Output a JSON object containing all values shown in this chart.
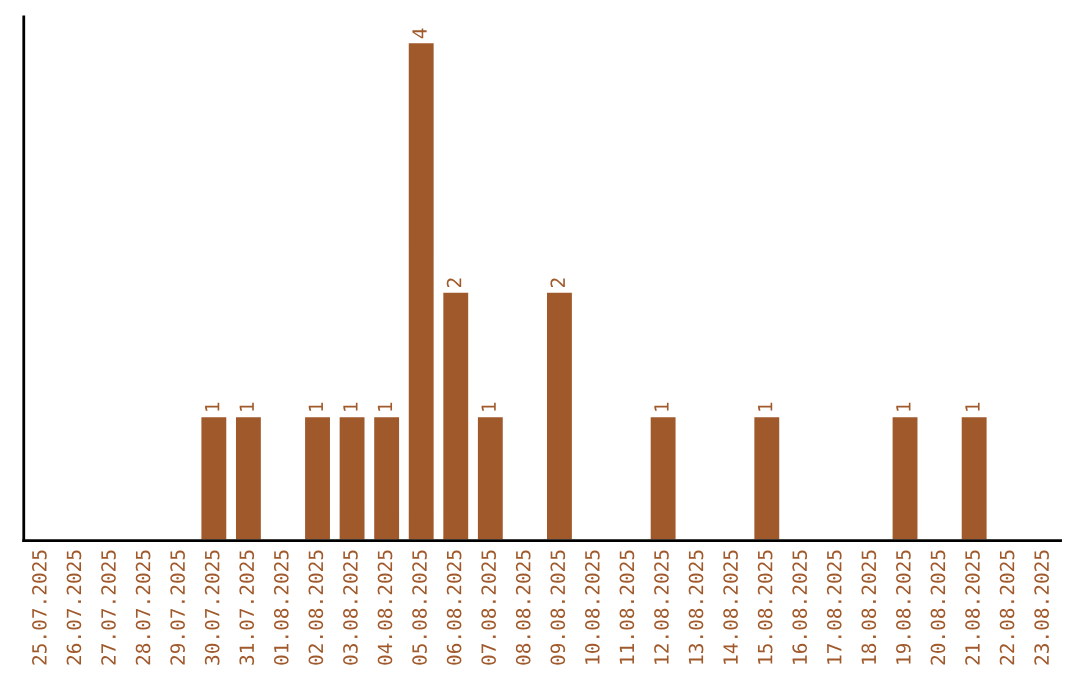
{
  "chart_data": {
    "type": "bar",
    "categories": [
      "25.07.2025",
      "26.07.2025",
      "27.07.2025",
      "28.07.2025",
      "29.07.2025",
      "30.07.2025",
      "31.07.2025",
      "01.08.2025",
      "02.08.2025",
      "03.08.2025",
      "04.08.2025",
      "05.08.2025",
      "06.08.2025",
      "07.08.2025",
      "08.08.2025",
      "09.08.2025",
      "10.08.2025",
      "11.08.2025",
      "12.08.2025",
      "13.08.2025",
      "14.08.2025",
      "15.08.2025",
      "16.08.2025",
      "17.08.2025",
      "18.08.2025",
      "19.08.2025",
      "20.08.2025",
      "21.08.2025",
      "22.08.2025",
      "23.08.2025"
    ],
    "values": [
      null,
      null,
      null,
      null,
      null,
      1,
      1,
      null,
      1,
      1,
      1,
      4,
      2,
      1,
      null,
      2,
      null,
      null,
      1,
      null,
      null,
      1,
      null,
      null,
      null,
      1,
      null,
      1,
      null,
      null
    ],
    "color": "#a0592b",
    "ylim": [
      0,
      4.2
    ],
    "data_labels": true,
    "tick_labels": "x",
    "grid": false,
    "legend": false
  }
}
